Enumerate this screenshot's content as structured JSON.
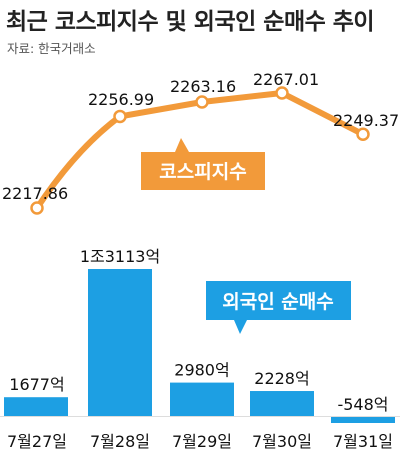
{
  "header": {
    "title": "최근 코스피지수 및 외국인 순매수 추이",
    "source": "자료: 한국거래소"
  },
  "colors": {
    "kospi": "#f29a3a",
    "foreign": "#1d9fe3",
    "text": "#111111"
  },
  "chart_data": [
    {
      "type": "line",
      "legend": "코스피지수",
      "categories": [
        "7월27일",
        "7월28일",
        "7월29일",
        "7월30일",
        "7월31일"
      ],
      "values": [
        2217.86,
        2256.99,
        2263.16,
        2267.01,
        2249.37
      ],
      "value_labels": [
        "2217.86",
        "2256.99",
        "2263.16",
        "2267.01",
        "2249.37"
      ]
    },
    {
      "type": "bar",
      "legend": "외국인 순매수",
      "categories": [
        "7월27일",
        "7월28일",
        "7월29일",
        "7월30일",
        "7월31일"
      ],
      "unit": "억",
      "values": [
        1677,
        13113,
        2980,
        2228,
        -548
      ],
      "value_labels": [
        "1677억",
        "1조3113억",
        "2980억",
        "2228억",
        "-548억"
      ]
    }
  ]
}
